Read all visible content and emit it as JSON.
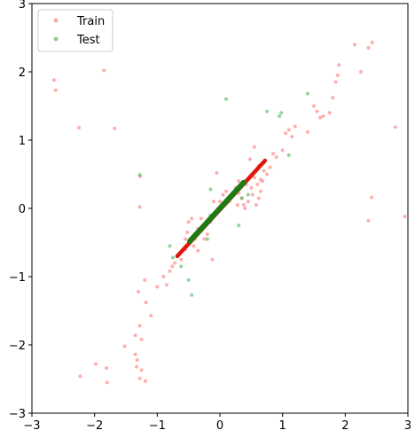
{
  "chart_data": {
    "type": "scatter",
    "xlim": [
      -3,
      3
    ],
    "ylim": [
      -3,
      3
    ],
    "x_ticks": [
      -3,
      -2,
      -1,
      0,
      1,
      2,
      3
    ],
    "y_ticks": [
      -3,
      -2,
      -1,
      0,
      1,
      2,
      3
    ],
    "x_tick_labels": [
      "−3",
      "−2",
      "−1",
      "0",
      "1",
      "2",
      "3"
    ],
    "y_tick_labels": [
      "−3",
      "−2",
      "−1",
      "0",
      "1",
      "2",
      "3"
    ],
    "grid": false,
    "legend": {
      "placement": "top-left",
      "entries": [
        "Train",
        "Test"
      ]
    },
    "series": [
      {
        "name": "Train",
        "color": "#ff6b6b",
        "points": [
          [
            -2.65,
            1.88
          ],
          [
            -2.62,
            1.73
          ],
          [
            -2.25,
            1.18
          ],
          [
            -1.85,
            2.02
          ],
          [
            -1.68,
            1.17
          ],
          [
            -1.28,
            0.02
          ],
          [
            -1.27,
            0.47
          ],
          [
            -2.23,
            -2.46
          ],
          [
            -1.98,
            -2.28
          ],
          [
            -1.81,
            -2.34
          ],
          [
            -1.8,
            -2.55
          ],
          [
            -1.52,
            -2.02
          ],
          [
            -1.35,
            -2.14
          ],
          [
            -1.32,
            -2.22
          ],
          [
            -1.33,
            -2.32
          ],
          [
            -1.28,
            -2.49
          ],
          [
            -1.25,
            -2.37
          ],
          [
            -1.19,
            -2.53
          ],
          [
            -1.35,
            -1.86
          ],
          [
            -1.28,
            -1.72
          ],
          [
            -1.25,
            -1.92
          ],
          [
            -1.18,
            -1.38
          ],
          [
            -1.1,
            -1.57
          ],
          [
            -1.0,
            -1.15
          ],
          [
            -1.3,
            -1.22
          ],
          [
            -1.2,
            -1.05
          ],
          [
            -0.9,
            -1.0
          ],
          [
            -0.85,
            -1.12
          ],
          [
            -0.8,
            -0.92
          ],
          [
            -0.76,
            -0.85
          ],
          [
            -0.72,
            -0.8
          ],
          [
            -0.62,
            -0.75
          ],
          [
            -0.55,
            -0.6
          ],
          [
            -0.55,
            -0.45
          ],
          [
            -0.52,
            -0.35
          ],
          [
            -0.5,
            -0.2
          ],
          [
            -0.45,
            -0.15
          ],
          [
            -0.42,
            -0.55
          ],
          [
            -0.4,
            -0.45
          ],
          [
            -0.35,
            -0.3
          ],
          [
            -0.3,
            -0.15
          ],
          [
            -0.25,
            -0.45
          ],
          [
            -0.2,
            -0.38
          ],
          [
            -0.15,
            -0.2
          ],
          [
            -0.1,
            0.1
          ],
          [
            -0.05,
            -0.05
          ],
          [
            0.0,
            0.1
          ],
          [
            0.05,
            0.2
          ],
          [
            0.1,
            0.25
          ],
          [
            0.15,
            0.1
          ],
          [
            0.2,
            0.18
          ],
          [
            0.25,
            0.3
          ],
          [
            0.3,
            0.22
          ],
          [
            0.35,
            0.15
          ],
          [
            0.38,
            0.05
          ],
          [
            0.4,
            0.0
          ],
          [
            0.42,
            0.35
          ],
          [
            0.45,
            0.1
          ],
          [
            0.5,
            0.3
          ],
          [
            0.52,
            0.2
          ],
          [
            0.55,
            0.45
          ],
          [
            0.58,
            0.05
          ],
          [
            0.6,
            0.35
          ],
          [
            0.62,
            0.15
          ],
          [
            0.65,
            0.25
          ],
          [
            0.68,
            0.4
          ],
          [
            0.7,
            0.55
          ],
          [
            0.75,
            0.5
          ],
          [
            0.8,
            0.6
          ],
          [
            0.85,
            0.8
          ],
          [
            0.9,
            0.75
          ],
          [
            1.0,
            0.85
          ],
          [
            1.05,
            1.1
          ],
          [
            1.1,
            1.15
          ],
          [
            1.15,
            1.05
          ],
          [
            1.2,
            1.2
          ],
          [
            1.4,
            1.12
          ],
          [
            1.5,
            1.5
          ],
          [
            1.55,
            1.42
          ],
          [
            1.6,
            1.33
          ],
          [
            1.65,
            1.35
          ],
          [
            1.75,
            1.4
          ],
          [
            1.8,
            1.62
          ],
          [
            1.85,
            1.85
          ],
          [
            1.88,
            1.95
          ],
          [
            1.9,
            2.1
          ],
          [
            2.15,
            2.4
          ],
          [
            2.25,
            2.0
          ],
          [
            2.37,
            2.35
          ],
          [
            2.43,
            2.43
          ],
          [
            2.8,
            1.19
          ],
          [
            2.42,
            0.16
          ],
          [
            2.37,
            -0.18
          ],
          [
            2.95,
            -0.12
          ],
          [
            -0.05,
            0.52
          ],
          [
            0.55,
            0.9
          ],
          [
            0.48,
            0.72
          ],
          [
            -0.12,
            -0.75
          ],
          [
            0.28,
            0.05
          ],
          [
            -0.35,
            -0.62
          ],
          [
            0.62,
            0.62
          ],
          [
            0.65,
            0.42
          ],
          [
            0.3,
            0.4
          ]
        ],
        "line": [
          [
            -0.68,
            -0.7
          ],
          [
            0.72,
            0.7
          ]
        ]
      },
      {
        "name": "Test",
        "color": "#3cb043",
        "points": [
          [
            -1.28,
            0.49
          ],
          [
            0.1,
            1.6
          ],
          [
            0.75,
            1.42
          ],
          [
            0.95,
            1.35
          ],
          [
            0.98,
            1.4
          ],
          [
            1.4,
            1.68
          ],
          [
            1.1,
            0.78
          ],
          [
            -0.8,
            -0.55
          ],
          [
            -0.75,
            -0.72
          ],
          [
            -0.62,
            -0.85
          ],
          [
            -0.5,
            -1.05
          ],
          [
            -0.45,
            -1.27
          ],
          [
            -0.2,
            -0.45
          ],
          [
            -0.15,
            -0.1
          ],
          [
            -0.15,
            0.28
          ],
          [
            0.05,
            0.05
          ],
          [
            0.3,
            -0.25
          ],
          [
            0.35,
            0.15
          ],
          [
            0.45,
            0.2
          ]
        ],
        "line": [
          [
            -0.48,
            -0.48
          ],
          [
            0.38,
            0.38
          ]
        ]
      }
    ]
  }
}
